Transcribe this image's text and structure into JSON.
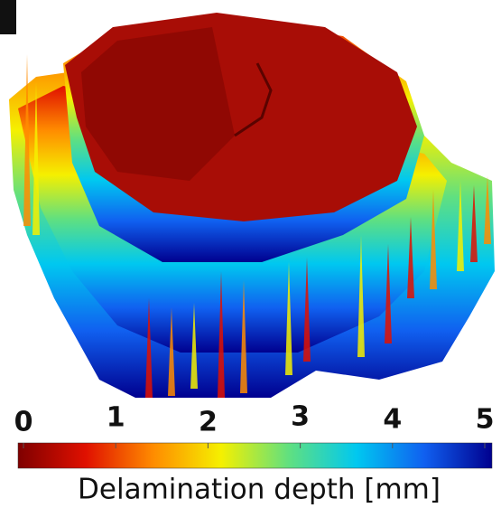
{
  "chart_data": {
    "type": "surface",
    "colorbar": {
      "label": "Delamination depth [mm]",
      "lim": [
        0,
        5
      ],
      "ticks": [
        0,
        1,
        2,
        3,
        4,
        5
      ],
      "colormap": [
        "#7f0000",
        "#e01000",
        "#ff8c00",
        "#f5f000",
        "#60e080",
        "#00c8f0",
        "#1060f0",
        "#00008f"
      ]
    }
  }
}
